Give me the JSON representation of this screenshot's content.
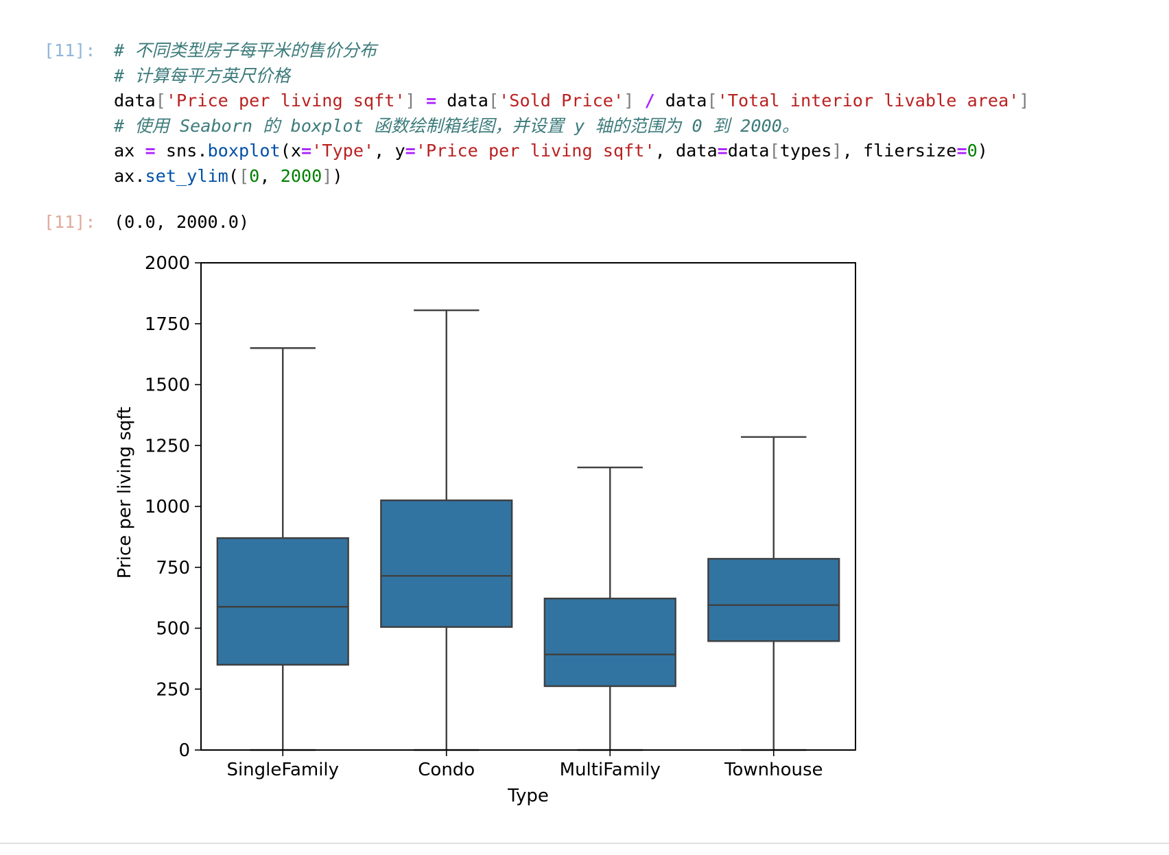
{
  "input_cell": {
    "prompt": "[11]:",
    "lines": [
      [
        {
          "t": "c",
          "v": "# 不同类型房子每平米的售价分布"
        }
      ],
      [
        {
          "t": "c",
          "v": "# 计算每平方英尺价格"
        }
      ],
      [
        {
          "t": "x",
          "v": "data"
        },
        {
          "t": "p",
          "v": "["
        },
        {
          "t": "s",
          "v": "'Price per living sqft'"
        },
        {
          "t": "p",
          "v": "]"
        },
        {
          "t": "x",
          "v": " "
        },
        {
          "t": "o",
          "v": "="
        },
        {
          "t": "x",
          "v": " data"
        },
        {
          "t": "p",
          "v": "["
        },
        {
          "t": "s",
          "v": "'Sold Price'"
        },
        {
          "t": "p",
          "v": "]"
        },
        {
          "t": "x",
          "v": " "
        },
        {
          "t": "o",
          "v": "/"
        },
        {
          "t": "x",
          "v": " data"
        },
        {
          "t": "p",
          "v": "["
        },
        {
          "t": "s",
          "v": "'Total interior livable area'"
        },
        {
          "t": "p",
          "v": "]"
        }
      ],
      [
        {
          "t": "c",
          "v": "# 使用 Seaborn 的 boxplot 函数绘制箱线图，并设置 y 轴的范围为 0 到 2000。"
        }
      ],
      [
        {
          "t": "x",
          "v": "ax "
        },
        {
          "t": "o",
          "v": "="
        },
        {
          "t": "x",
          "v": " sns."
        },
        {
          "t": "f",
          "v": "boxplot"
        },
        {
          "t": "x",
          "v": "(x"
        },
        {
          "t": "o",
          "v": "="
        },
        {
          "t": "s",
          "v": "'Type'"
        },
        {
          "t": "x",
          "v": ", y"
        },
        {
          "t": "o",
          "v": "="
        },
        {
          "t": "s",
          "v": "'Price per living sqft'"
        },
        {
          "t": "x",
          "v": ", data"
        },
        {
          "t": "o",
          "v": "="
        },
        {
          "t": "x",
          "v": "data"
        },
        {
          "t": "p",
          "v": "["
        },
        {
          "t": "x",
          "v": "types"
        },
        {
          "t": "p",
          "v": "]"
        },
        {
          "t": "x",
          "v": ", fliersize"
        },
        {
          "t": "o",
          "v": "="
        },
        {
          "t": "n",
          "v": "0"
        },
        {
          "t": "x",
          "v": ")"
        }
      ],
      [
        {
          "t": "x",
          "v": "ax."
        },
        {
          "t": "f",
          "v": "set_ylim"
        },
        {
          "t": "x",
          "v": "("
        },
        {
          "t": "p",
          "v": "["
        },
        {
          "t": "n",
          "v": "0"
        },
        {
          "t": "x",
          "v": ", "
        },
        {
          "t": "n",
          "v": "2000"
        },
        {
          "t": "p",
          "v": "]"
        },
        {
          "t": "x",
          "v": ")"
        }
      ]
    ]
  },
  "output_cell": {
    "prompt": "[11]:",
    "text": "(0.0, 2000.0)"
  },
  "chart_data": {
    "type": "box",
    "xlabel": "Type",
    "ylabel": "Price per living sqft",
    "ylim": [
      0,
      2000
    ],
    "yticks": [
      0,
      250,
      500,
      750,
      1000,
      1250,
      1500,
      1750,
      2000
    ],
    "categories": [
      "SingleFamily",
      "Condo",
      "MultiFamily",
      "Townhouse"
    ],
    "boxes": [
      {
        "category": "SingleFamily",
        "whisker_low": 0,
        "q1": 350,
        "median": 588,
        "q3": 870,
        "whisker_high": 1650
      },
      {
        "category": "Condo",
        "whisker_low": 0,
        "q1": 505,
        "median": 715,
        "q3": 1025,
        "whisker_high": 1805
      },
      {
        "category": "MultiFamily",
        "whisker_low": 0,
        "q1": 262,
        "median": 392,
        "q3": 622,
        "whisker_high": 1160
      },
      {
        "category": "Townhouse",
        "whisker_low": 0,
        "q1": 447,
        "median": 595,
        "q3": 785,
        "whisker_high": 1285
      }
    ],
    "box_color": "#3274a1",
    "line_color": "#3f3f3f",
    "grid": false
  }
}
